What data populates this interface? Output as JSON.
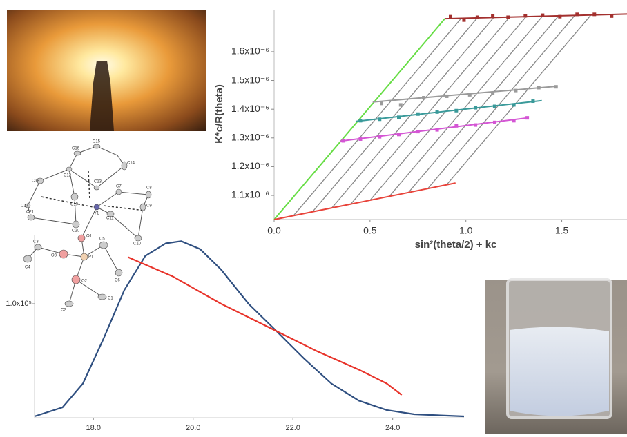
{
  "chart_data": [
    {
      "type": "line",
      "x_label": "sin²(theta/2) + kc",
      "y_label": "K*c/R(theta)",
      "xlim": [
        0,
        1.84
      ],
      "ylim": [
        1.016e-06,
        1.744e-06
      ],
      "xticks": [
        {
          "value": 0,
          "label": "0.0"
        },
        0.5,
        {
          "value": 1,
          "label": "1.0"
        },
        1.5
      ],
      "yticks": [
        {
          "value": 1.1e-06,
          "label": "1.1x10⁻⁶"
        },
        {
          "value": 1.2e-06,
          "label": "1.2x10⁻⁶"
        },
        {
          "value": 1.3e-06,
          "label": "1.3x10⁻⁶"
        },
        {
          "value": 1.4e-06,
          "label": "1.4x10⁻⁶"
        },
        {
          "value": 1.5e-06,
          "label": "1.5x10⁻⁶"
        },
        {
          "value": 1.6e-06,
          "label": "1.6x10⁻⁶"
        }
      ],
      "series": [
        {
          "color": "#888888",
          "mode": "lines",
          "x": [
            0.1,
            0.975
          ],
          "values": [
            1.029e-06,
            1.716e-06
          ]
        },
        {
          "color": "#888888",
          "mode": "lines",
          "x": [
            0.2,
            1.06
          ],
          "values": [
            1.043e-06,
            1.718e-06
          ]
        },
        {
          "color": "#888888",
          "mode": "lines",
          "x": [
            0.3,
            1.145
          ],
          "values": [
            1.056e-06,
            1.719e-06
          ]
        },
        {
          "color": "#888888",
          "mode": "lines",
          "x": [
            0.4,
            1.23
          ],
          "values": [
            1.07e-06,
            1.722e-06
          ]
        },
        {
          "color": "#888888",
          "mode": "lines",
          "x": [
            0.5,
            1.314
          ],
          "values": [
            1.083e-06,
            1.722e-06
          ]
        },
        {
          "color": "#888888",
          "mode": "lines",
          "x": [
            0.6,
            1.399
          ],
          "values": [
            1.096e-06,
            1.723e-06
          ]
        },
        {
          "color": "#888888",
          "mode": "lines",
          "x": [
            0.7,
            1.484
          ],
          "values": [
            1.11e-06,
            1.725e-06
          ]
        },
        {
          "color": "#888888",
          "mode": "lines",
          "x": [
            0.8,
            1.569
          ],
          "values": [
            1.123e-06,
            1.727e-06
          ]
        },
        {
          "color": "#888888",
          "mode": "lines",
          "x": [
            0.9,
            1.654
          ],
          "values": [
            1.137e-06,
            1.729e-06
          ]
        },
        {
          "color": "#66dd44",
          "mode": "lines",
          "x": [
            0,
            0.89
          ],
          "values": [
            1.016e-06,
            1.715e-06
          ]
        },
        {
          "color": "#e8433a",
          "mode": "lines",
          "x": [
            0,
            0.946
          ],
          "values": [
            1.016e-06,
            1.143e-06
          ]
        },
        {
          "color": "#a3302e",
          "mode": "lines",
          "x": [
            0.89,
            1.84
          ],
          "values": [
            1.715e-06,
            1.731e-06
          ]
        },
        {
          "color": "#d455d4",
          "mode": "lines",
          "x": [
            0.345,
            1.324
          ],
          "values": [
            1.289e-06,
            1.37e-06
          ]
        },
        {
          "color": "#3a9a9a",
          "mode": "lines",
          "x": [
            0.428,
            1.396
          ],
          "values": [
            1.358e-06,
            1.43e-06
          ]
        },
        {
          "color": "#9a9a9a",
          "mode": "lines",
          "x": [
            0.514,
            1.478
          ],
          "values": [
            1.425e-06,
            1.48e-06
          ]
        },
        {
          "color": "#a3302e",
          "mode": "markers",
          "x": [
            0.92,
            0.99,
            1.06,
            1.14,
            1.22,
            1.31,
            1.4,
            1.49,
            1.58,
            1.67,
            1.76
          ],
          "values": [
            1.722e-06,
            1.71e-06,
            1.72e-06,
            1.724e-06,
            1.72e-06,
            1.725e-06,
            1.727e-06,
            1.722e-06,
            1.73e-06,
            1.73e-06,
            1.724e-06
          ]
        },
        {
          "color": "#d455d4",
          "mode": "markers",
          "x": [
            0.36,
            0.45,
            0.55,
            0.65,
            0.75,
            0.85,
            0.95,
            1.05,
            1.15,
            1.25,
            1.32
          ],
          "values": [
            1.29e-06,
            1.296e-06,
            1.304e-06,
            1.312e-06,
            1.322e-06,
            1.328e-06,
            1.342e-06,
            1.345e-06,
            1.354e-06,
            1.36e-06,
            1.37e-06
          ]
        },
        {
          "color": "#3a9a9a",
          "mode": "markers",
          "x": [
            0.45,
            0.55,
            0.65,
            0.75,
            0.85,
            0.95,
            1.05,
            1.15,
            1.25,
            1.35
          ],
          "values": [
            1.36e-06,
            1.365e-06,
            1.372e-06,
            1.383e-06,
            1.39e-06,
            1.395e-06,
            1.405e-06,
            1.41e-06,
            1.415e-06,
            1.428e-06
          ]
        },
        {
          "color": "#9a9a9a",
          "mode": "markers",
          "x": [
            0.56,
            0.66,
            0.78,
            0.9,
            1.02,
            1.14,
            1.26,
            1.38,
            1.47
          ],
          "values": [
            1.42e-06,
            1.415e-06,
            1.44e-06,
            1.445e-06,
            1.45e-06,
            1.455e-06,
            1.465e-06,
            1.475e-06,
            1.478e-06
          ]
        }
      ]
    },
    {
      "type": "line",
      "xlim": [
        16.82,
        25.43
      ],
      "ylim": [
        0,
        160000
      ],
      "xticks": [
        {
          "value": 18,
          "label": "18.0"
        },
        {
          "value": 20,
          "label": "20.0"
        },
        {
          "value": 22,
          "label": "22.0"
        },
        {
          "value": 24,
          "label": "24.0"
        }
      ],
      "yticks": [
        {
          "value": 100000,
          "label": "1.0x10⁵"
        }
      ],
      "series": [
        {
          "color": "#2f4f80",
          "mode": "lines",
          "x": [
            16.82,
            17.38,
            17.79,
            18.21,
            18.62,
            19.04,
            19.45,
            19.76,
            20.14,
            20.56,
            21.11,
            21.67,
            22.22,
            22.77,
            23.32,
            23.88,
            24.43,
            25.43
          ],
          "values": [
            1200,
            9000,
            30000,
            70000,
            112000,
            142000,
            153000,
            155000,
            148000,
            130000,
            100000,
            76000,
            52000,
            30000,
            15000,
            6700,
            3000,
            1200
          ]
        },
        {
          "color": "#e8332a",
          "mode": "lines",
          "x": [
            18.69,
            19.59,
            20.56,
            21.67,
            22.5,
            23.33,
            23.88,
            24.18
          ],
          "values": [
            141000,
            124000,
            100000,
            76000,
            58000,
            42000,
            30000,
            20000
          ]
        }
      ]
    }
  ],
  "molecule": {
    "atoms": [
      "C16",
      "C15",
      "C14",
      "C12",
      "C13",
      "C7",
      "C8",
      "C18",
      "C19",
      "Y1",
      "C9",
      "C17",
      "C21",
      "C11",
      "C20",
      "C10",
      "O1",
      "C3",
      "O3",
      "C5",
      "P1",
      "C4",
      "C6",
      "O2",
      "C1",
      "C2"
    ]
  }
}
